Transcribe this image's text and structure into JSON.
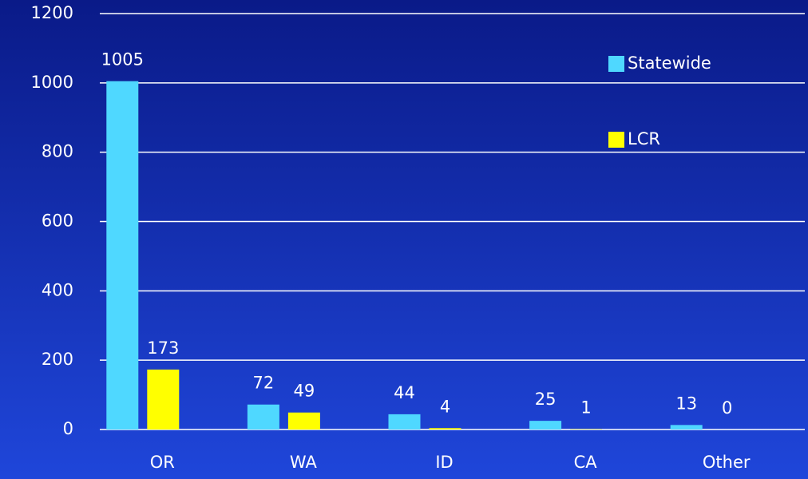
{
  "chart_data": {
    "type": "bar",
    "categories": [
      "OR",
      "WA",
      "ID",
      "CA",
      "Other"
    ],
    "series": [
      {
        "name": "Statewide",
        "color": "#4fd8ff",
        "values": [
          1005,
          72,
          44,
          25,
          13
        ]
      },
      {
        "name": "LCR",
        "color": "#ffff00",
        "values": [
          173,
          49,
          4,
          1,
          0
        ]
      }
    ],
    "ylim": [
      0,
      1200
    ],
    "yticks": [
      0,
      200,
      400,
      600,
      800,
      1000,
      1200
    ],
    "grid": true,
    "legend": "upper right"
  }
}
